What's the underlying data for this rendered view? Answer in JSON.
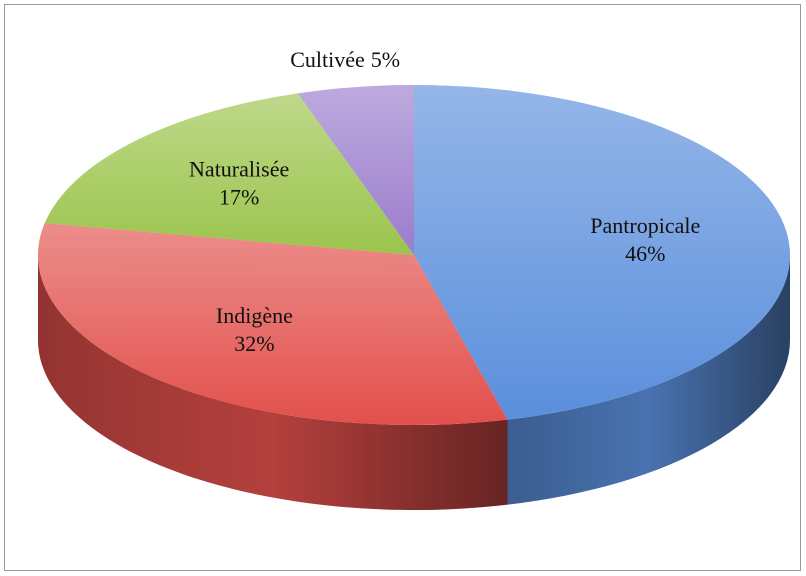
{
  "chart_data": {
    "type": "pie",
    "categories": [
      "Pantropicale",
      "Indigène",
      "Naturalisée",
      "Cultivée"
    ],
    "values": [
      46,
      32,
      17,
      5
    ],
    "value_labels": [
      "46%",
      "32%",
      "17%",
      "5%"
    ],
    "colors": [
      "#5b8fdc",
      "#e2504c",
      "#9bc44c",
      "#9a7ccc"
    ]
  }
}
